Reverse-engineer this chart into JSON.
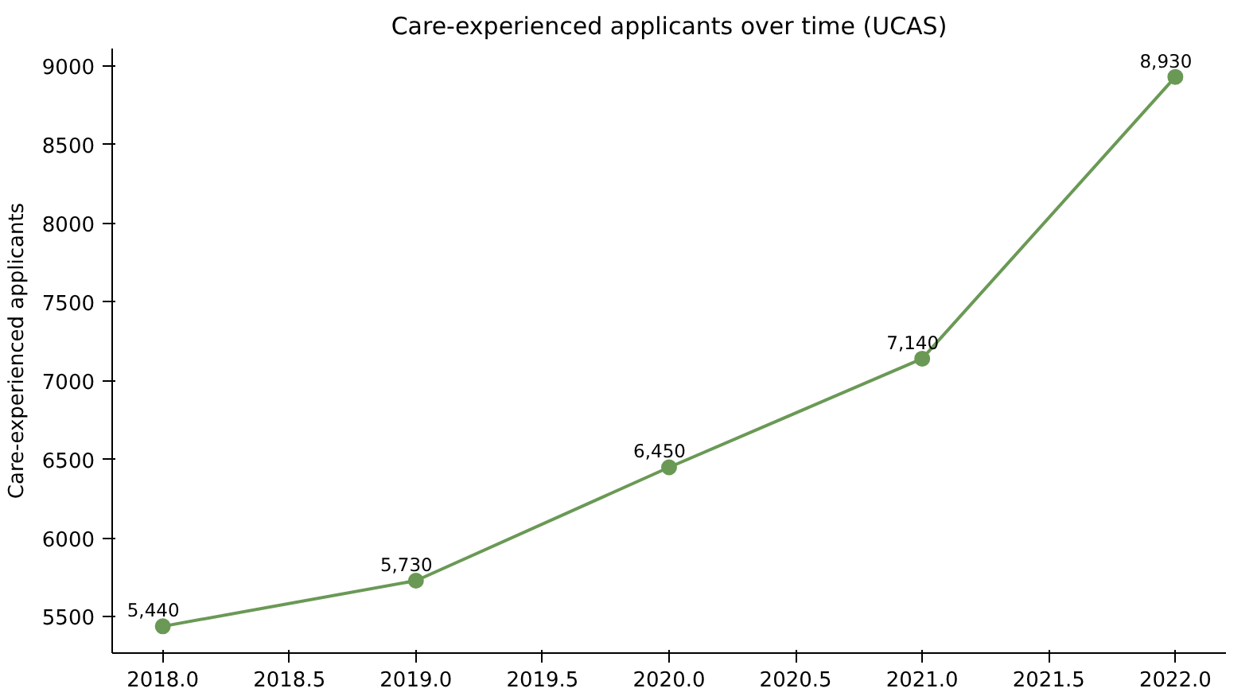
{
  "chart_data": {
    "type": "line",
    "title": "Care-experienced applicants over time (UCAS)",
    "ylabel": "Care-experienced applicants",
    "x": [
      2018,
      2019,
      2020,
      2021,
      2022
    ],
    "series": [
      {
        "color": "#6a9955",
        "values": [
          5440,
          5730,
          6450,
          7140,
          8930
        ],
        "value_labels": [
          "5,440",
          "5,730",
          "6,450",
          "7,140",
          "8,930"
        ]
      }
    ],
    "xlim": [
      2017.8,
      2022.2
    ],
    "ylim": [
      5270,
      9110
    ],
    "xticks": [
      {
        "value": 2018,
        "label": "2018.0"
      },
      {
        "value": 2018.5,
        "label": "2018.5"
      },
      {
        "value": 2019,
        "label": "2019.0"
      },
      {
        "value": 2019.5,
        "label": "2019.5"
      },
      {
        "value": 2020,
        "label": "2020.0"
      },
      {
        "value": 2020.5,
        "label": "2020.5"
      },
      {
        "value": 2021,
        "label": "2021.0"
      },
      {
        "value": 2021.5,
        "label": "2021.5"
      },
      {
        "value": 2022,
        "label": "2022.0"
      }
    ],
    "yticks": [
      5500,
      6000,
      6500,
      7000,
      7500,
      8000,
      8500,
      9000
    ],
    "grid": false,
    "marker": "circle",
    "line_style": "solid"
  }
}
